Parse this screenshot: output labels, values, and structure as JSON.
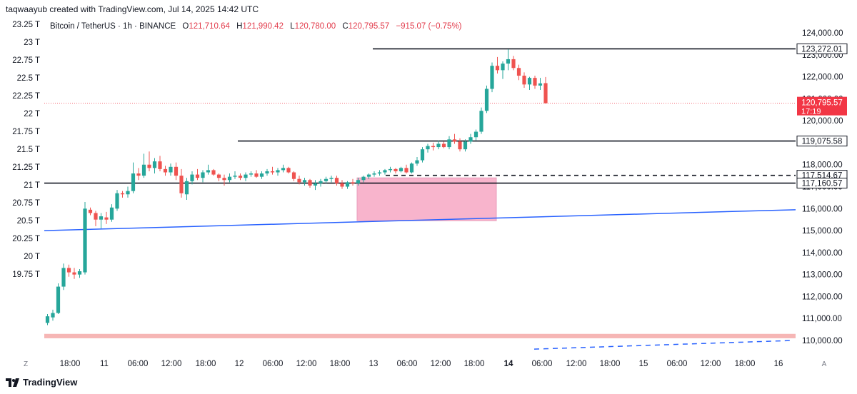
{
  "header": {
    "credit": "taqwaayub created with TradingView.com, Jul 14, 2025 14:42 UTC"
  },
  "legend": {
    "symbol": "Bitcoin / TetherUS · 1h · BINANCE",
    "o_label": "O",
    "o_value": "121,710.64",
    "h_label": "H",
    "h_value": "121,990.42",
    "l_label": "L",
    "l_value": "120,780.00",
    "c_label": "C",
    "c_value": "120,795.57",
    "change": "−915.07 (−0.75%)"
  },
  "footer": {
    "brand": "TradingView",
    "logo_icon": "tradingview-logo-icon"
  },
  "colors": {
    "up": "#26a69a",
    "down": "#ef5350",
    "trend": "#2962ff",
    "zone": "#f7a8c4",
    "band": "#f5a9a8",
    "level": "#131722",
    "price_tag": "#f23645"
  },
  "chart_data": {
    "type": "candlestick",
    "right_axis": {
      "label": "price",
      "range": [
        109500,
        124700
      ],
      "ticks": [
        "124,000.00",
        "123,000.00",
        "122,000.00",
        "121,000.00",
        "120,000.00",
        "119,000.00",
        "118,000.00",
        "117,000.00",
        "116,000.00",
        "115,000.00",
        "114,000.00",
        "113,000.00",
        "112,000.00",
        "111,000.00",
        "110,000.00"
      ]
    },
    "left_axis": {
      "ticks": [
        "23.25 T",
        "23 T",
        "22.75 T",
        "22.5 T",
        "22.25 T",
        "22 T",
        "21.75 T",
        "21.5 T",
        "21.25 T",
        "21 T",
        "20.75 T",
        "20.5 T",
        "20.25 T",
        "20 T",
        "19.75 T"
      ]
    },
    "x_axis": {
      "ticks": [
        "18:00",
        "11",
        "06:00",
        "12:00",
        "18:00",
        "12",
        "06:00",
        "12:00",
        "18:00",
        "13",
        "06:00",
        "12:00",
        "18:00",
        "14",
        "06:00",
        "12:00",
        "18:00",
        "15",
        "06:00",
        "12:00",
        "18:00",
        "16"
      ],
      "bold_ticks": [
        "14"
      ],
      "corner_left": "Z",
      "corner_right": "A"
    },
    "ohlc": [
      [
        110800,
        111200,
        110700,
        111100
      ],
      [
        111050,
        111400,
        110900,
        111250
      ],
      [
        111250,
        112600,
        111200,
        112450
      ],
      [
        112450,
        113500,
        112300,
        113300
      ],
      [
        113300,
        113450,
        112900,
        113100
      ],
      [
        113100,
        113300,
        112800,
        113000
      ],
      [
        113000,
        113250,
        112850,
        113150
      ],
      [
        113100,
        116300,
        113000,
        116000
      ],
      [
        115950,
        116050,
        115700,
        115800
      ],
      [
        115800,
        115900,
        115200,
        115500
      ],
      [
        115500,
        115800,
        115100,
        115650
      ],
      [
        115600,
        115850,
        115300,
        115500
      ],
      [
        115500,
        116200,
        115400,
        116050
      ],
      [
        116000,
        116850,
        115900,
        116700
      ],
      [
        116700,
        116800,
        116500,
        116650
      ],
      [
        116650,
        117000,
        116500,
        116800
      ],
      [
        116800,
        118100,
        116700,
        117600
      ],
      [
        117600,
        117850,
        117300,
        117500
      ],
      [
        117500,
        118500,
        117400,
        118000
      ],
      [
        118000,
        118600,
        117700,
        117850
      ],
      [
        117850,
        118300,
        117600,
        118150
      ],
      [
        118150,
        118400,
        117700,
        117800
      ],
      [
        117800,
        117950,
        117500,
        117650
      ],
      [
        117650,
        118050,
        117500,
        117900
      ],
      [
        117900,
        118100,
        117300,
        117500
      ],
      [
        117500,
        117800,
        116500,
        116700
      ],
      [
        116650,
        117400,
        116400,
        117250
      ],
      [
        117250,
        117700,
        117100,
        117550
      ],
      [
        117550,
        117800,
        117300,
        117400
      ],
      [
        117400,
        117750,
        117200,
        117650
      ],
      [
        117650,
        118000,
        117550,
        117750
      ],
      [
        117750,
        117800,
        117500,
        117550
      ],
      [
        117550,
        117600,
        117250,
        117400
      ],
      [
        117400,
        117550,
        117050,
        117300
      ],
      [
        117300,
        117600,
        117200,
        117450
      ],
      [
        117450,
        117700,
        117350,
        117500
      ],
      [
        117500,
        117600,
        117300,
        117400
      ],
      [
        117400,
        117650,
        117250,
        117550
      ],
      [
        117550,
        117700,
        117450,
        117600
      ],
      [
        117600,
        117750,
        117400,
        117450
      ],
      [
        117450,
        117700,
        117350,
        117600
      ],
      [
        117600,
        117800,
        117500,
        117700
      ],
      [
        117700,
        117900,
        117550,
        117650
      ],
      [
        117650,
        117850,
        117500,
        117750
      ],
      [
        117750,
        118000,
        117650,
        117850
      ],
      [
        117850,
        117900,
        117600,
        117650
      ],
      [
        117650,
        117700,
        117250,
        117350
      ],
      [
        117350,
        117500,
        117100,
        117200
      ],
      [
        117200,
        117400,
        117050,
        117300
      ],
      [
        117300,
        117350,
        116950,
        117050
      ],
      [
        117050,
        117300,
        116850,
        117150
      ],
      [
        117150,
        117350,
        117000,
        117250
      ],
      [
        117250,
        117450,
        117150,
        117350
      ],
      [
        117350,
        117500,
        117200,
        117400
      ],
      [
        117400,
        117500,
        117050,
        117150
      ],
      [
        117150,
        117300,
        116900,
        117000
      ],
      [
        117000,
        117250,
        116900,
        117200
      ],
      [
        117200,
        117350,
        117050,
        117150
      ],
      [
        117150,
        117400,
        117050,
        117300
      ],
      [
        117300,
        117500,
        117200,
        117450
      ],
      [
        117450,
        117600,
        117350,
        117550
      ],
      [
        117550,
        117700,
        117450,
        117600
      ],
      [
        117600,
        117750,
        117500,
        117650
      ],
      [
        117650,
        117800,
        117550,
        117750
      ],
      [
        117750,
        117900,
        117650,
        117800
      ],
      [
        117800,
        117850,
        117600,
        117700
      ],
      [
        117700,
        117900,
        117650,
        117850
      ],
      [
        117850,
        118000,
        117600,
        117650
      ],
      [
        117650,
        118100,
        117600,
        118050
      ],
      [
        118050,
        118350,
        117950,
        118200
      ],
      [
        118200,
        118800,
        118100,
        118700
      ],
      [
        118700,
        118950,
        118550,
        118850
      ],
      [
        118850,
        119000,
        118650,
        118800
      ],
      [
        118800,
        119100,
        118700,
        118950
      ],
      [
        118950,
        119050,
        118750,
        118800
      ],
      [
        118800,
        119300,
        118700,
        119150
      ],
      [
        119150,
        119400,
        118950,
        119050
      ],
      [
        119050,
        119200,
        118600,
        118700
      ],
      [
        118700,
        119150,
        118600,
        119050
      ],
      [
        119050,
        119400,
        118950,
        119250
      ],
      [
        119250,
        119600,
        119100,
        119500
      ],
      [
        119500,
        120600,
        119400,
        120450
      ],
      [
        120450,
        121600,
        120350,
        121450
      ],
      [
        121450,
        122650,
        121300,
        122500
      ],
      [
        122500,
        122900,
        122150,
        122300
      ],
      [
        122300,
        122700,
        121900,
        122600
      ],
      [
        122600,
        123250,
        122300,
        122800
      ],
      [
        122800,
        122950,
        122300,
        122400
      ],
      [
        122400,
        122550,
        121850,
        122050
      ],
      [
        122050,
        122200,
        121500,
        121650
      ],
      [
        121650,
        122000,
        121400,
        121950
      ],
      [
        121950,
        122050,
        121450,
        121600
      ],
      [
        121600,
        121950,
        121400,
        121700
      ],
      [
        121710.64,
        121990.42,
        120780,
        120795.57
      ]
    ],
    "horizontal_levels": [
      {
        "value": 123272.01,
        "label": "123,272.01",
        "style": "solid"
      },
      {
        "value": 119075.58,
        "label": "119,075.58",
        "style": "solid"
      },
      {
        "value": 117514.67,
        "label": "117,514.67",
        "style": "dashed"
      },
      {
        "value": 117160.57,
        "label": "117,160.57",
        "style": "solid"
      }
    ],
    "last_price": {
      "value": 120795.57,
      "label": "120,795.57",
      "countdown": "17:19"
    },
    "trendline": {
      "from_candle": 0,
      "from_price": 115000,
      "to_candle": 94,
      "to_price": 115950
    },
    "dashed_trendline": {
      "from_candle": 61,
      "from_price": 109800,
      "to_candle": 94,
      "to_price": 110000
    },
    "zone": {
      "from_candle": 57,
      "to_candle": 75,
      "top": 117400,
      "bottom": 115450
    },
    "bottom_band": {
      "top": 110300,
      "bottom": 110100
    }
  }
}
